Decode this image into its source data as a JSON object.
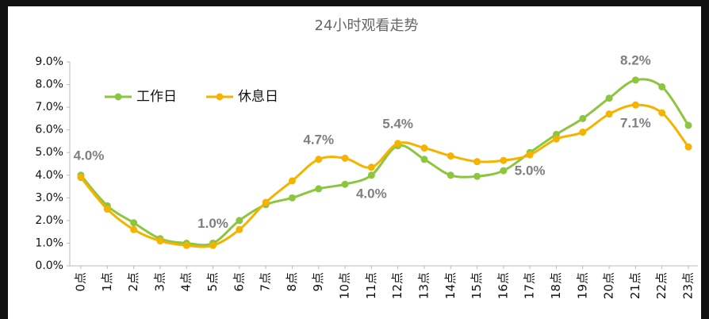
{
  "chart_data": {
    "type": "line",
    "title": "24小时观看走势",
    "categories": [
      "0点",
      "1点",
      "2点",
      "3点",
      "4点",
      "5点",
      "6点",
      "7点",
      "8点",
      "9点",
      "10点",
      "11点",
      "12点",
      "13点",
      "14点",
      "15点",
      "16点",
      "17点",
      "18点",
      "19点",
      "20点",
      "21点",
      "22点",
      "23点"
    ],
    "series": [
      {
        "name": "工作日",
        "color": "#8cc63e",
        "values": [
          4.0,
          2.65,
          1.9,
          1.2,
          1.0,
          1.0,
          2.0,
          2.7,
          3.0,
          3.4,
          3.6,
          4.0,
          5.3,
          4.7,
          4.0,
          3.95,
          4.2,
          5.0,
          5.8,
          6.5,
          7.4,
          8.2,
          7.9,
          6.2
        ],
        "value_labels": [
          "4.0%",
          null,
          null,
          null,
          null,
          "1.0%",
          null,
          null,
          null,
          null,
          null,
          "4.0%",
          null,
          null,
          null,
          null,
          null,
          "5.0%",
          null,
          null,
          null,
          "8.2%",
          null,
          null
        ]
      },
      {
        "name": "休息日",
        "color": "#f5b300",
        "values": [
          3.9,
          2.5,
          1.6,
          1.1,
          0.9,
          0.9,
          1.6,
          2.8,
          3.75,
          4.7,
          4.75,
          4.35,
          5.4,
          5.2,
          4.85,
          4.6,
          4.65,
          4.9,
          5.6,
          5.9,
          6.7,
          7.1,
          6.75,
          5.25
        ],
        "value_labels": [
          null,
          null,
          null,
          null,
          null,
          null,
          null,
          null,
          null,
          "4.7%",
          null,
          null,
          "5.4%",
          null,
          null,
          null,
          null,
          null,
          null,
          null,
          null,
          "7.1%",
          null,
          null
        ]
      }
    ],
    "ylim": [
      0,
      9
    ],
    "yticks": [
      {
        "value": 0,
        "label": "0.0%"
      },
      {
        "value": 1,
        "label": "1.0%"
      },
      {
        "value": 2,
        "label": "2.0%"
      },
      {
        "value": 3,
        "label": "3.0%"
      },
      {
        "value": 4,
        "label": "4.0%"
      },
      {
        "value": 5,
        "label": "5.0%"
      },
      {
        "value": 6,
        "label": "6.0%"
      },
      {
        "value": 7,
        "label": "7.0%"
      },
      {
        "value": 8,
        "label": "8.0%"
      },
      {
        "value": 9,
        "label": "9.0%"
      }
    ],
    "grid": false,
    "legend": "top-left"
  }
}
